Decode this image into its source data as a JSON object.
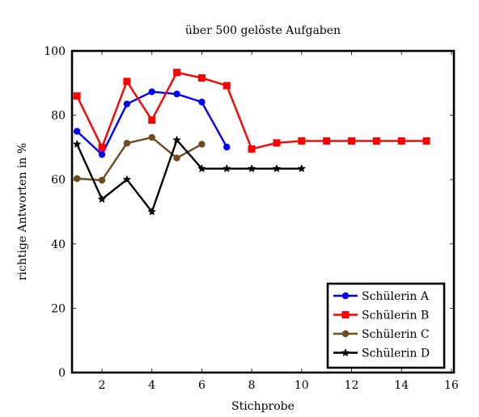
{
  "chart_data": {
    "type": "line",
    "title": "über 500 gelöste Aufgaben",
    "xlabel": "Stichprobe",
    "ylabel": "richtige Antworten in %",
    "xlim": [
      0.8,
      16.1
    ],
    "ylim": [
      0,
      100
    ],
    "x_ticks": [
      2,
      4,
      6,
      8,
      10,
      12,
      14,
      16
    ],
    "y_ticks": [
      0,
      20,
      40,
      60,
      80,
      100
    ],
    "grid": false,
    "legend_position": "bottom-right",
    "series": [
      {
        "name": "Schülerin A",
        "color": "#0000ff",
        "marker": "circle",
        "x": [
          1,
          2,
          3,
          4,
          5,
          6,
          7
        ],
        "y": [
          75.0,
          67.8,
          83.5,
          87.3,
          86.6,
          84.1,
          70.1
        ]
      },
      {
        "name": "Schülerin B",
        "color": "#ff0000",
        "marker": "square",
        "x": [
          1,
          2,
          3,
          4,
          5,
          6,
          7,
          8,
          9,
          10,
          11,
          12,
          13,
          14,
          15
        ],
        "y": [
          86.0,
          70.0,
          90.5,
          78.5,
          93.3,
          91.6,
          89.2,
          69.5,
          71.4,
          72.0,
          72.0,
          72.0,
          72.0,
          72.0,
          72.0
        ]
      },
      {
        "name": "Schülerin C",
        "color": "#704a20",
        "marker": "circle",
        "x": [
          1,
          2,
          3,
          4,
          5,
          6
        ],
        "y": [
          60.3,
          59.8,
          71.3,
          73.1,
          66.7,
          71.0
        ]
      },
      {
        "name": "Schülerin D",
        "color": "#000000",
        "marker": "star",
        "x": [
          1,
          2,
          3,
          4,
          5,
          6,
          7,
          8,
          9,
          10
        ],
        "y": [
          71.0,
          53.9,
          60.0,
          50.0,
          72.3,
          63.4,
          63.4,
          63.4,
          63.4,
          63.4
        ]
      }
    ]
  }
}
